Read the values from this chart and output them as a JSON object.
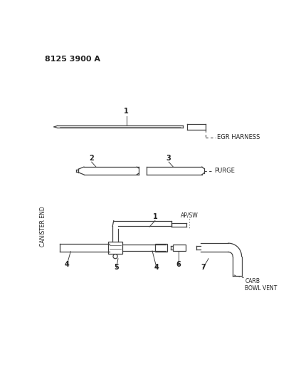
{
  "title": "8125 3900 A",
  "bg_color": "#ffffff",
  "line_color": "#404040",
  "text_color": "#222222",
  "canister_end_label": "CANISTER END",
  "egr_label": "EGR HARNESS",
  "purge_label": "PURGE",
  "ap_sw_label": "AP/SW",
  "carb_bowl_vent_label": "CARB\nBOWL VENT",
  "labels": [
    "1",
    "2",
    "3",
    "1",
    "4",
    "5",
    "4",
    "6",
    "7"
  ]
}
